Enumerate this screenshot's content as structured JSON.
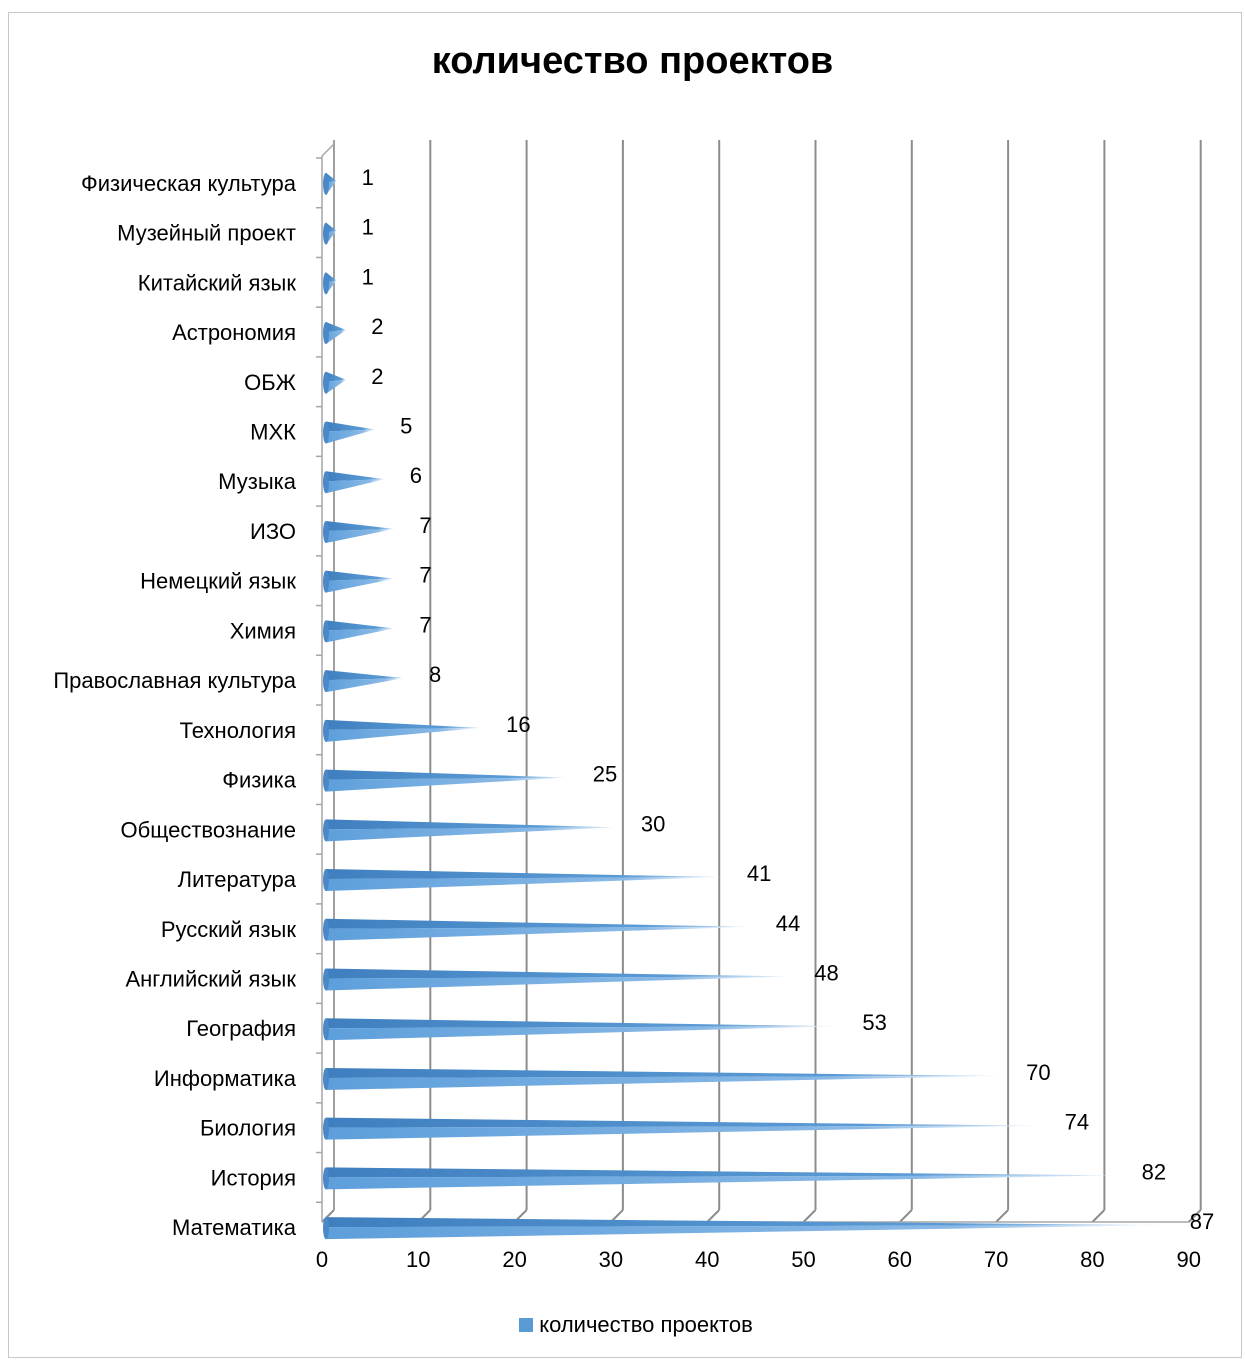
{
  "chart_data": {
    "type": "bar",
    "orientation": "horizontal",
    "title": "количество проектов",
    "categories": [
      "Физическая культура",
      "Музейный проект",
      "Китайский язык",
      "Астрономия",
      "ОБЖ",
      "МХК",
      "Музыка",
      "ИЗО",
      "Немецкий язык",
      "Химия",
      "Православная культура",
      "Технология",
      "Физика",
      "Обществознание",
      "Литература",
      "Русский язык",
      "Английский язык",
      "География",
      "Информатика",
      "Биология",
      "История",
      "Математика"
    ],
    "series": [
      {
        "name": "количество проектов",
        "values": [
          1,
          1,
          1,
          2,
          2,
          5,
          6,
          7,
          7,
          7,
          8,
          16,
          25,
          30,
          41,
          44,
          48,
          53,
          70,
          74,
          82,
          87
        ],
        "color": "#5b9bd5"
      }
    ],
    "xlim": [
      0,
      90
    ],
    "x_ticks": [
      "0",
      "10",
      "20",
      "30",
      "40",
      "50",
      "60",
      "70",
      "80",
      "90"
    ],
    "grid": true,
    "legend_position": "bottom",
    "bar_shape": "3d-cone"
  }
}
